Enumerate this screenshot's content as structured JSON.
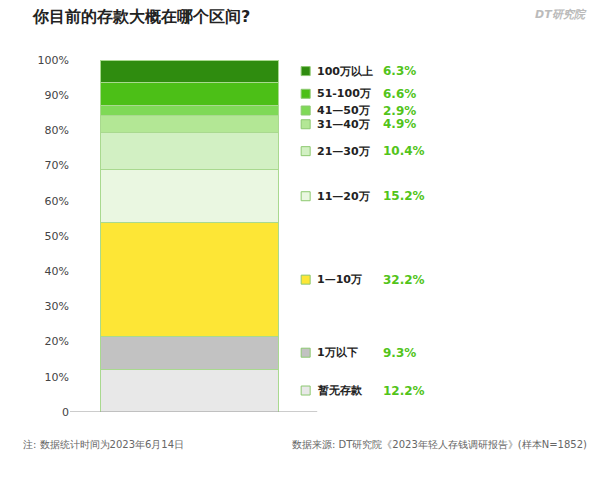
{
  "chart_data": {
    "type": "bar",
    "stacked": true,
    "title": "你目前的存款大概在哪个区间?",
    "annotations": [
      "DT研究院",
      "注: 数据统计时间为2023年6月14日",
      "数据来源: DT研究院《2023年轻人存钱调研报告》(样本N=1852)"
    ],
    "ylim": [
      0,
      100
    ],
    "yticks": [
      0,
      {
        "value": 10,
        "label": "10%"
      },
      {
        "value": 20,
        "label": "20%"
      },
      {
        "value": 30,
        "label": "30%"
      },
      {
        "value": 40,
        "label": "40%"
      },
      {
        "value": 50,
        "label": "50%"
      },
      {
        "value": 60,
        "label": "60%"
      },
      {
        "value": 70,
        "label": "70%"
      },
      {
        "value": 80,
        "label": "80%"
      },
      {
        "value": 90,
        "label": "90%"
      },
      {
        "value": 100,
        "label": "100%"
      }
    ],
    "grid": false,
    "tick_labels": "y",
    "series": [
      {
        "name": "暂无存款",
        "color": "#e8e8e8",
        "values": [
          12.2
        ],
        "value_labels": [
          "12.2%"
        ]
      },
      {
        "name": "1万以下",
        "color": "#c2c2c2",
        "values": [
          9.3
        ],
        "value_labels": [
          "9.3%"
        ]
      },
      {
        "name": "1—10万",
        "color": "#fde636",
        "values": [
          32.2
        ],
        "value_labels": [
          "32.2%"
        ]
      },
      {
        "name": "11—20万",
        "color": "#eaf7e1",
        "values": [
          15.2
        ],
        "value_labels": [
          "15.2%"
        ]
      },
      {
        "name": "21—30万",
        "color": "#d2f0c3",
        "values": [
          10.4
        ],
        "value_labels": [
          "10.4%"
        ]
      },
      {
        "name": "31—40万",
        "color": "#b3e795",
        "values": [
          4.9
        ],
        "value_labels": [
          "4.9%"
        ]
      },
      {
        "name": "41—50万",
        "color": "#7fd957",
        "values": [
          2.9
        ],
        "value_labels": [
          "2.9%"
        ]
      },
      {
        "name": "51-100万",
        "color": "#4cbf17",
        "values": [
          6.6
        ],
        "value_labels": [
          "6.6%"
        ]
      },
      {
        "name": "100万以上",
        "color": "#2f8c0f",
        "values": [
          6.3
        ],
        "value_labels": [
          "6.3%"
        ]
      }
    ]
  }
}
